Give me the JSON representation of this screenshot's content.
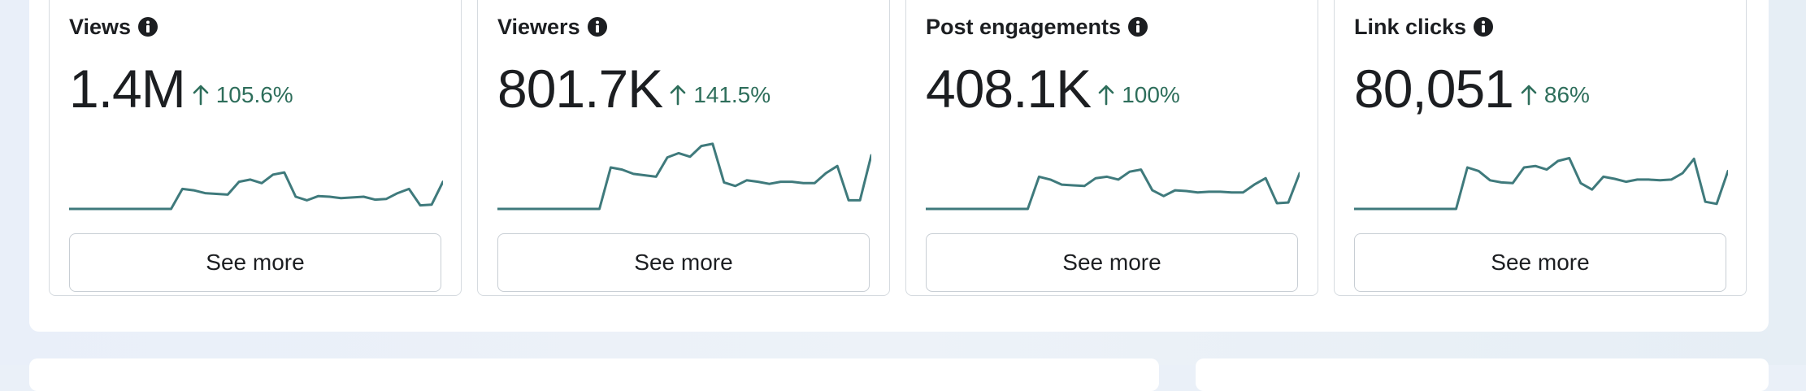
{
  "cards": [
    {
      "title": "Views",
      "value": "1.4M",
      "delta": "105.6%",
      "trend": [
        0,
        0,
        0,
        0,
        0,
        0,
        0,
        0,
        0,
        0,
        0.28,
        0.26,
        0.22,
        0.21,
        0.2,
        0.38,
        0.41,
        0.36,
        0.48,
        0.51,
        0.17,
        0.12,
        0.18,
        0.17,
        0.15,
        0.16,
        0.17,
        0.13,
        0.14,
        0.22,
        0.28,
        0.05,
        0.06,
        0.38
      ]
    },
    {
      "title": "Viewers",
      "value": "801.7K",
      "delta": "141.5%",
      "trend": [
        0,
        0,
        0,
        0,
        0,
        0,
        0,
        0,
        0,
        0,
        0.58,
        0.55,
        0.49,
        0.47,
        0.45,
        0.72,
        0.78,
        0.73,
        0.88,
        0.91,
        0.37,
        0.32,
        0.4,
        0.38,
        0.35,
        0.38,
        0.38,
        0.36,
        0.36,
        0.5,
        0.6,
        0.12,
        0.12,
        0.75
      ]
    },
    {
      "title": "Post engagements",
      "value": "408.1K",
      "delta": "100%",
      "trend": [
        0,
        0,
        0,
        0,
        0,
        0,
        0,
        0,
        0,
        0,
        0.45,
        0.41,
        0.34,
        0.33,
        0.32,
        0.43,
        0.45,
        0.41,
        0.52,
        0.55,
        0.26,
        0.18,
        0.26,
        0.25,
        0.23,
        0.24,
        0.24,
        0.23,
        0.23,
        0.34,
        0.43,
        0.08,
        0.09,
        0.5
      ]
    },
    {
      "title": "Link clicks",
      "value": "80,051",
      "delta": "86%",
      "trend": [
        0,
        0,
        0,
        0,
        0,
        0,
        0,
        0,
        0,
        0,
        0.58,
        0.53,
        0.4,
        0.37,
        0.36,
        0.58,
        0.6,
        0.55,
        0.67,
        0.71,
        0.36,
        0.27,
        0.45,
        0.42,
        0.38,
        0.41,
        0.41,
        0.4,
        0.41,
        0.5,
        0.7,
        0.1,
        0.07,
        0.53
      ]
    }
  ],
  "see_more_label": "See more",
  "colors": {
    "sparkline": "#3f7a7c",
    "delta": "#2e6e5b",
    "text": "#1c1e21",
    "border": "#d6dbe0"
  },
  "icons": {
    "info": "info-icon",
    "delta_arrow": "arrow-up-icon"
  }
}
